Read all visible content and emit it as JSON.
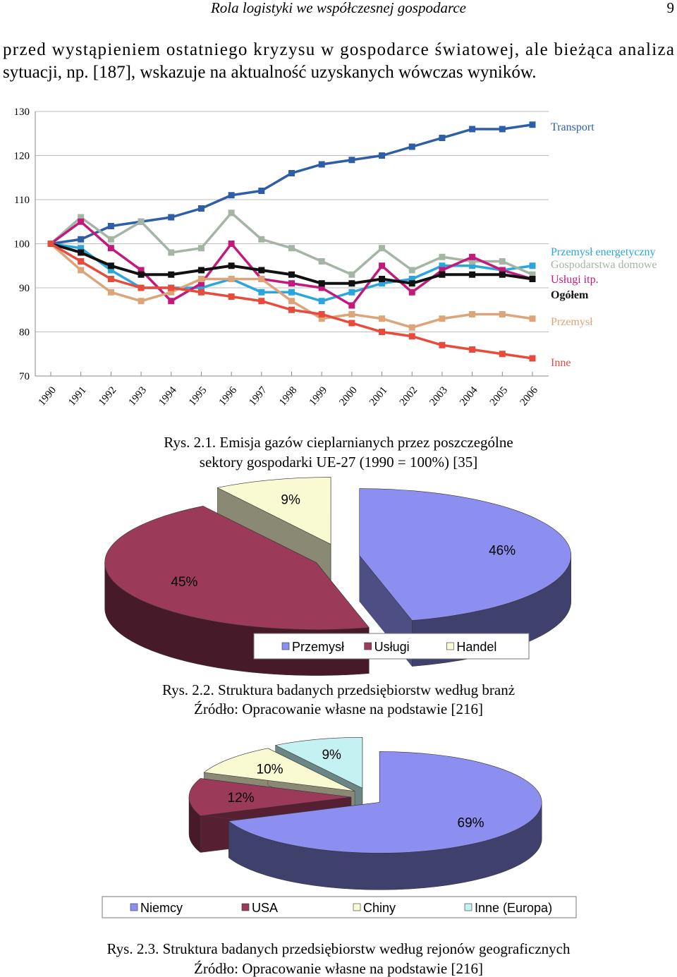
{
  "header": {
    "title": "Rola logistyki we współczesnej gospodarce",
    "page": "9"
  },
  "paragraph": [
    "przed wystąpieniem ostatniego kryzysu w gospodarce światowej, ale bieżąca analiza",
    "sytuacji, np. [187], wskazuje na aktualność uzyskanych wówczas wyników."
  ],
  "chart_data": [
    {
      "type": "line",
      "categories": [
        "1990",
        "1991",
        "1992",
        "1993",
        "1994",
        "1995",
        "1996",
        "1997",
        "1998",
        "1999",
        "2000",
        "2001",
        "2002",
        "2003",
        "2004",
        "2005",
        "2006"
      ],
      "ylim": [
        70,
        130
      ],
      "yticks": [
        70,
        80,
        90,
        100,
        110,
        120,
        130
      ],
      "grid": true,
      "series": [
        {
          "name": "Transport",
          "color": "#2e5ea8",
          "values": [
            100,
            101,
            104,
            105,
            106,
            108,
            111,
            112,
            116,
            118,
            119,
            120,
            122,
            124,
            126,
            126,
            127
          ]
        },
        {
          "name": "Przemysł energetyczny",
          "color": "#2aa6dc",
          "values": [
            100,
            99,
            94,
            90,
            90,
            90,
            92,
            89,
            89,
            87,
            89,
            91,
            92,
            95,
            95,
            94,
            95
          ]
        },
        {
          "name": "Gospodarstwa domowe",
          "color": "#a5b5a5",
          "values": [
            100,
            106,
            101,
            105,
            98,
            99,
            107,
            101,
            99,
            96,
            93,
            99,
            94,
            97,
            96,
            96,
            93
          ]
        },
        {
          "name": "Usługi itp.",
          "color": "#c2197b",
          "values": [
            100,
            105,
            99,
            94,
            87,
            91,
            100,
            92,
            91,
            90,
            86,
            95,
            89,
            94,
            97,
            94,
            92
          ]
        },
        {
          "name": "Ogółem",
          "color": "#111111",
          "values": [
            100,
            98,
            95,
            93,
            93,
            94,
            95,
            94,
            93,
            91,
            91,
            92,
            91,
            93,
            93,
            93,
            92
          ]
        },
        {
          "name": "Przemysł",
          "color": "#dca478",
          "values": [
            100,
            94,
            89,
            87,
            89,
            92,
            92,
            92,
            87,
            83,
            84,
            83,
            81,
            83,
            84,
            84,
            83
          ]
        },
        {
          "name": "Inne",
          "color": "#e84a3c",
          "values": [
            100,
            96,
            92,
            90,
            90,
            89,
            88,
            87,
            85,
            84,
            82,
            80,
            79,
            77,
            76,
            75,
            74
          ]
        }
      ],
      "caption": [
        "Rys. 2.1. Emisja gazów cieplarnianych przez poszczególne",
        "sektory gospodarki UE-27 (1990 = 100%) [35]"
      ]
    },
    {
      "type": "pie",
      "categories": [
        "Przemysł",
        "Usługi",
        "Handel"
      ],
      "values": [
        46,
        45,
        9
      ],
      "value_labels": [
        "46%",
        "45%",
        "9%"
      ],
      "colors": [
        "#8c8ff0",
        "#9c3a5a",
        "#fafad2"
      ],
      "caption": [
        "Rys. 2.2. Struktura badanych przedsiębiorstw według branż",
        "Źródło: Opracowanie własne na podstawie [216]"
      ]
    },
    {
      "type": "pie",
      "categories": [
        "Niemcy",
        "USA",
        "Chiny",
        "Inne (Europa)"
      ],
      "values": [
        69,
        12,
        10,
        9
      ],
      "value_labels": [
        "69%",
        "12%",
        "10%",
        "9%"
      ],
      "colors": [
        "#8c8ff0",
        "#9c3a5a",
        "#fafad2",
        "#c4f2f2"
      ],
      "caption": [
        "Rys. 2.3. Struktura badanych przedsiębiorstw według rejonów geograficznych",
        "Źródło: Opracowanie własne na podstawie [216]"
      ]
    }
  ]
}
